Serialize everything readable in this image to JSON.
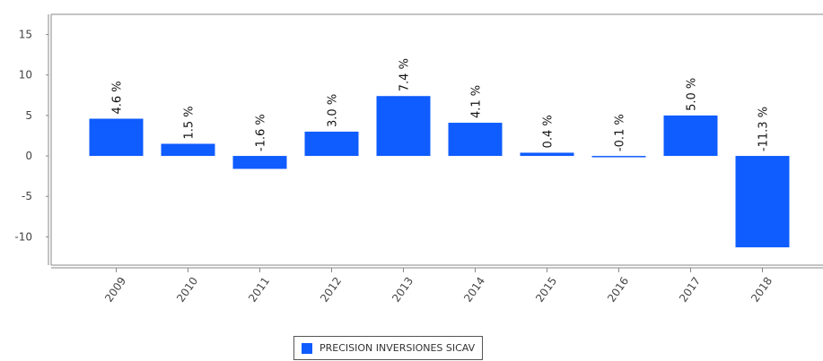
{
  "chart_data": {
    "type": "bar",
    "categories": [
      "2009",
      "2010",
      "2011",
      "2012",
      "2013",
      "2014",
      "2015",
      "2016",
      "2017",
      "2018"
    ],
    "series": [
      {
        "name": "PRECISION INVERSIONES SICAV",
        "values": [
          4.6,
          1.5,
          -1.6,
          3.0,
          7.4,
          4.1,
          0.4,
          -0.1,
          5.0,
          -11.3
        ],
        "labels": [
          "4.6 %",
          "1.5 %",
          "-1.6 %",
          "3.0 %",
          "7.4 %",
          "4.1 %",
          "0.4 %",
          "-0.1 %",
          "5.0 %",
          "-11.3 %"
        ],
        "color": "#0f5cff"
      }
    ],
    "yticks": [
      "15",
      "10",
      "5",
      "0",
      "-5",
      "-10"
    ],
    "ylim": [
      -13.5,
      17.5
    ],
    "grid": false,
    "legend_position": "bottom"
  }
}
